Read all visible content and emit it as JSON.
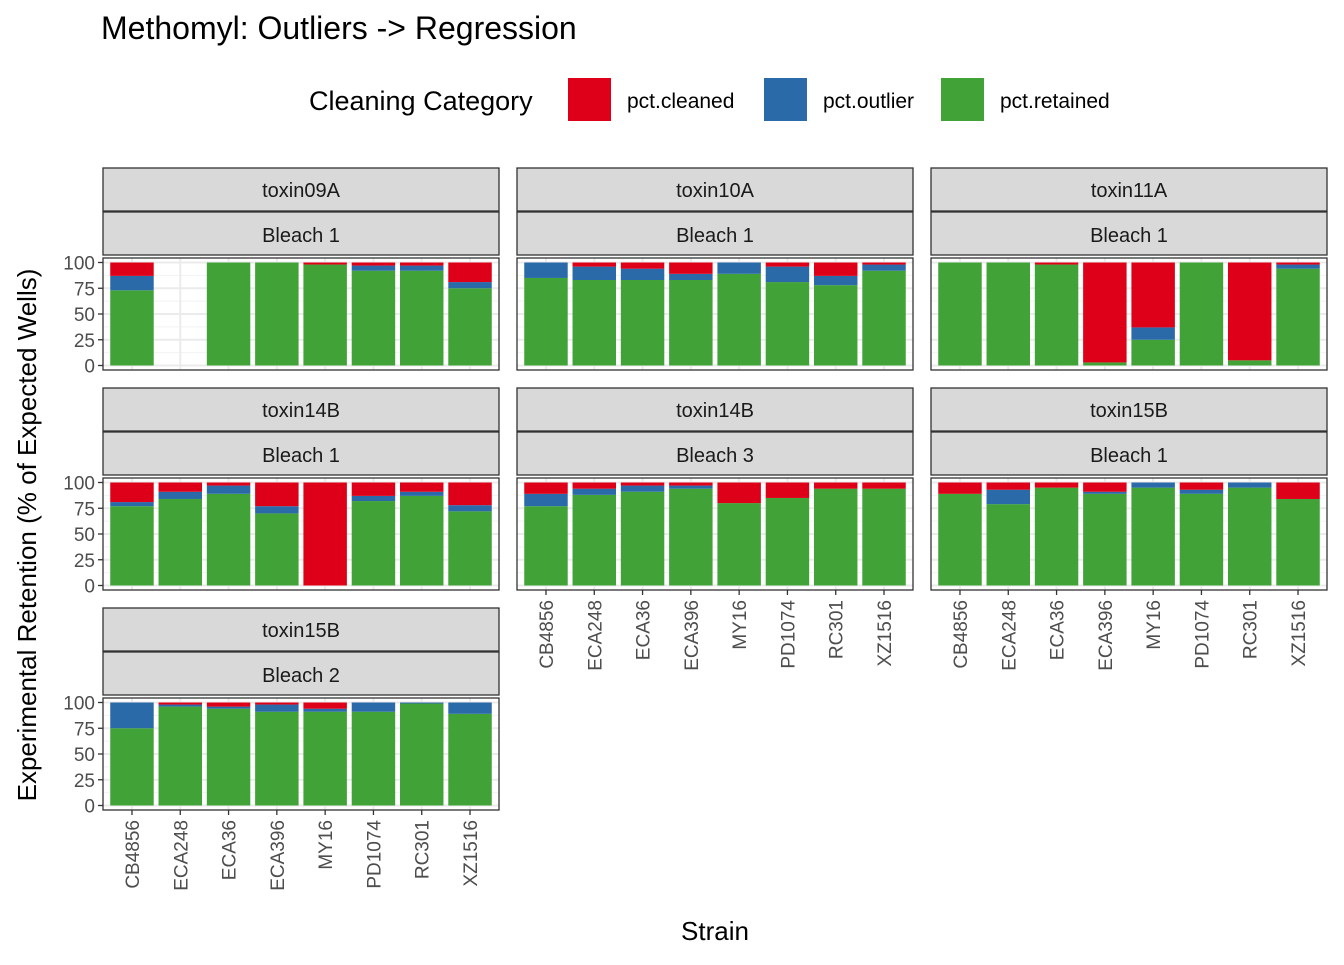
{
  "chart_data": {
    "type": "bar",
    "stacked": true,
    "title": "Methomyl: Outliers -> Regression",
    "xlabel": "Strain",
    "ylabel": "Experimental Retention (% of Expected Wells)",
    "ylim": [
      0,
      100
    ],
    "yticks": [
      0,
      25,
      50,
      75,
      100
    ],
    "grid": true,
    "legend": {
      "title": "Cleaning Category",
      "placement": "top",
      "entries": [
        {
          "name": "pct.cleaned",
          "color": "#DE0019"
        },
        {
          "name": "pct.outlier",
          "color": "#2B6AA8"
        },
        {
          "name": "pct.retained",
          "color": "#41A238"
        }
      ]
    },
    "categories": [
      "CB4856",
      "ECA248",
      "ECA36",
      "ECA396",
      "MY16",
      "PD1074",
      "RC301",
      "XZ1516"
    ],
    "facets": [
      {
        "toxin": "toxin09A",
        "bleach": "Bleach 1",
        "pct.retained": [
          73,
          null,
          100,
          100,
          98,
          92,
          92,
          75
        ],
        "pct.outlier": [
          14,
          null,
          0,
          0,
          0,
          5,
          5,
          6
        ],
        "pct.cleaned": [
          13,
          null,
          0,
          0,
          2,
          3,
          3,
          19
        ]
      },
      {
        "toxin": "toxin10A",
        "bleach": "Bleach 1",
        "pct.retained": [
          85,
          83,
          83,
          83,
          89,
          81,
          78,
          92
        ],
        "pct.outlier": [
          15,
          13,
          11,
          6,
          11,
          15,
          9,
          6
        ],
        "pct.cleaned": [
          0,
          4,
          6,
          11,
          0,
          4,
          13,
          2
        ]
      },
      {
        "toxin": "toxin11A",
        "bleach": "Bleach 1",
        "pct.retained": [
          100,
          100,
          98,
          3,
          25,
          100,
          5,
          94
        ],
        "pct.outlier": [
          0,
          0,
          0,
          0,
          12,
          0,
          0,
          4
        ],
        "pct.cleaned": [
          0,
          0,
          2,
          97,
          63,
          0,
          95,
          2
        ]
      },
      {
        "toxin": "toxin14B",
        "bleach": "Bleach 1",
        "pct.retained": [
          77,
          84,
          89,
          70,
          0,
          82,
          87,
          72
        ],
        "pct.outlier": [
          4,
          7,
          8,
          7,
          0,
          5,
          4,
          6
        ],
        "pct.cleaned": [
          19,
          9,
          3,
          23,
          100,
          13,
          9,
          22
        ]
      },
      {
        "toxin": "toxin14B",
        "bleach": "Bleach 3",
        "pct.retained": [
          77,
          88,
          91,
          94,
          80,
          85,
          94,
          94
        ],
        "pct.outlier": [
          12,
          6,
          6,
          3,
          0,
          0,
          0,
          0
        ],
        "pct.cleaned": [
          11,
          6,
          3,
          3,
          20,
          15,
          6,
          6
        ]
      },
      {
        "toxin": "toxin15B",
        "bleach": "Bleach 1",
        "pct.retained": [
          89,
          79,
          95,
          89,
          95,
          89,
          95,
          84
        ],
        "pct.outlier": [
          0,
          14,
          0,
          2,
          5,
          4,
          5,
          0
        ],
        "pct.cleaned": [
          11,
          7,
          5,
          9,
          0,
          7,
          0,
          16
        ]
      },
      {
        "toxin": "toxin15B",
        "bleach": "Bleach 2",
        "pct.retained": [
          75,
          96,
          94,
          91,
          91,
          91,
          99,
          89
        ],
        "pct.outlier": [
          25,
          2,
          2,
          7,
          3,
          9,
          1,
          11
        ],
        "pct.cleaned": [
          0,
          2,
          4,
          2,
          6,
          0,
          0,
          0
        ]
      }
    ]
  }
}
